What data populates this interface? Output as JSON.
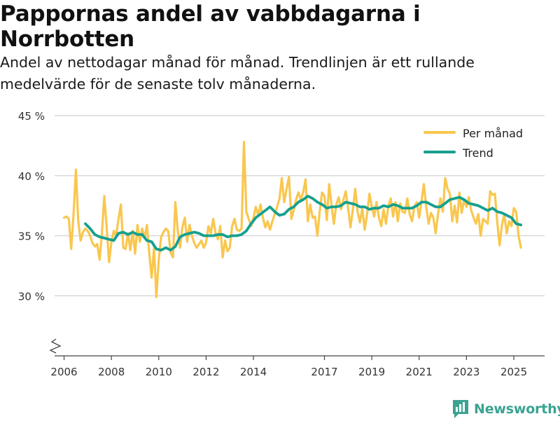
{
  "header": {
    "title": "Pappornas andel av vabbdagarna i Norrbotten",
    "subtitle": "Andel av nettodagar månad för månad. Trendlinjen är ett rullande medelvärde för de senaste tolv månaderna."
  },
  "brand": {
    "name": "Newsworthy",
    "color": "#3aa391"
  },
  "chart_data": {
    "type": "line",
    "title": "Pappornas andel av vabbdagarna i Norrbotten",
    "xlabel": "",
    "ylabel": "",
    "xlim": [
      2005.6,
      2026.3
    ],
    "ylim": [
      25,
      45
    ],
    "y_axis_break": true,
    "grid": true,
    "legend_position": "top-right",
    "y_ticks": [
      {
        "value": 30,
        "label": "30 %"
      },
      {
        "value": 35,
        "label": "35 %"
      },
      {
        "value": 40,
        "label": "40 %"
      },
      {
        "value": 45,
        "label": "45 %"
      }
    ],
    "x_ticks": [
      {
        "value": 2006,
        "label": "2006"
      },
      {
        "value": 2008,
        "label": "2008"
      },
      {
        "value": 2010,
        "label": "2010"
      },
      {
        "value": 2012,
        "label": "2012"
      },
      {
        "value": 2014,
        "label": "2014"
      },
      {
        "value": 2017,
        "label": "2017"
      },
      {
        "value": 2019,
        "label": "2019"
      },
      {
        "value": 2021,
        "label": "2021"
      },
      {
        "value": 2023,
        "label": "2023"
      },
      {
        "value": 2025,
        "label": "2025"
      }
    ],
    "series": [
      {
        "name": "Per månad",
        "color": "#f9c74f",
        "points": [
          [
            2006.0,
            36.5
          ],
          [
            2006.1,
            36.6
          ],
          [
            2006.2,
            36.4
          ],
          [
            2006.3,
            33.9
          ],
          [
            2006.4,
            36.8
          ],
          [
            2006.5,
            40.5
          ],
          [
            2006.6,
            36.2
          ],
          [
            2006.7,
            34.6
          ],
          [
            2006.8,
            35.3
          ],
          [
            2006.9,
            35.6
          ],
          [
            2007.0,
            35.4
          ],
          [
            2007.1,
            35.0
          ],
          [
            2007.2,
            34.4
          ],
          [
            2007.3,
            34.1
          ],
          [
            2007.4,
            34.3
          ],
          [
            2007.5,
            33.0
          ],
          [
            2007.6,
            35.2
          ],
          [
            2007.7,
            38.3
          ],
          [
            2007.8,
            35.7
          ],
          [
            2007.9,
            32.8
          ],
          [
            2008.0,
            34.5
          ],
          [
            2008.1,
            35.4
          ],
          [
            2008.2,
            35.0
          ],
          [
            2008.3,
            36.4
          ],
          [
            2008.4,
            37.6
          ],
          [
            2008.5,
            34.0
          ],
          [
            2008.6,
            33.9
          ],
          [
            2008.7,
            35.2
          ],
          [
            2008.8,
            33.8
          ],
          [
            2008.9,
            35.4
          ],
          [
            2009.0,
            33.5
          ],
          [
            2009.1,
            35.9
          ],
          [
            2009.2,
            34.5
          ],
          [
            2009.3,
            35.6
          ],
          [
            2009.4,
            34.8
          ],
          [
            2009.5,
            35.9
          ],
          [
            2009.6,
            33.5
          ],
          [
            2009.7,
            31.5
          ],
          [
            2009.8,
            34.0
          ],
          [
            2009.9,
            29.9
          ],
          [
            2010.0,
            33.0
          ],
          [
            2010.1,
            34.9
          ],
          [
            2010.2,
            35.3
          ],
          [
            2010.3,
            35.6
          ],
          [
            2010.4,
            35.4
          ],
          [
            2010.5,
            33.6
          ],
          [
            2010.6,
            33.2
          ],
          [
            2010.7,
            37.8
          ],
          [
            2010.8,
            35.5
          ],
          [
            2010.9,
            34.0
          ],
          [
            2011.0,
            35.7
          ],
          [
            2011.1,
            36.5
          ],
          [
            2011.2,
            34.5
          ],
          [
            2011.3,
            35.9
          ],
          [
            2011.4,
            35.0
          ],
          [
            2011.5,
            34.4
          ],
          [
            2011.6,
            34.0
          ],
          [
            2011.7,
            34.3
          ],
          [
            2011.8,
            34.6
          ],
          [
            2011.9,
            34.0
          ],
          [
            2012.0,
            34.4
          ],
          [
            2012.1,
            35.8
          ],
          [
            2012.2,
            35.2
          ],
          [
            2012.3,
            36.4
          ],
          [
            2012.4,
            35.2
          ],
          [
            2012.5,
            34.7
          ],
          [
            2012.6,
            35.8
          ],
          [
            2012.7,
            33.2
          ],
          [
            2012.8,
            34.6
          ],
          [
            2012.9,
            33.7
          ],
          [
            2013.0,
            34.0
          ],
          [
            2013.1,
            35.8
          ],
          [
            2013.2,
            36.4
          ],
          [
            2013.3,
            35.5
          ],
          [
            2013.4,
            35.4
          ],
          [
            2013.5,
            35.6
          ],
          [
            2013.6,
            42.8
          ],
          [
            2013.7,
            37.0
          ],
          [
            2013.8,
            36.4
          ],
          [
            2013.9,
            35.8
          ],
          [
            2014.0,
            36.5
          ],
          [
            2014.1,
            37.4
          ],
          [
            2014.2,
            36.7
          ],
          [
            2014.3,
            37.6
          ],
          [
            2014.4,
            36.5
          ],
          [
            2014.5,
            35.7
          ],
          [
            2014.6,
            36.2
          ],
          [
            2014.7,
            35.5
          ],
          [
            2014.8,
            36.2
          ],
          [
            2014.9,
            36.8
          ],
          [
            2015.0,
            37.4
          ],
          [
            2015.1,
            38.1
          ],
          [
            2015.2,
            39.8
          ],
          [
            2015.3,
            37.8
          ],
          [
            2015.4,
            38.9
          ],
          [
            2015.5,
            39.9
          ],
          [
            2015.6,
            36.4
          ],
          [
            2015.7,
            37.1
          ],
          [
            2015.8,
            38.0
          ],
          [
            2015.9,
            38.6
          ],
          [
            2016.0,
            38.0
          ],
          [
            2016.1,
            38.6
          ],
          [
            2016.2,
            39.7
          ],
          [
            2016.3,
            36.2
          ],
          [
            2016.4,
            37.6
          ],
          [
            2016.5,
            36.5
          ],
          [
            2016.6,
            36.6
          ],
          [
            2016.7,
            35.0
          ],
          [
            2016.8,
            37.0
          ],
          [
            2016.9,
            38.6
          ],
          [
            2017.0,
            38.3
          ],
          [
            2017.1,
            36.3
          ],
          [
            2017.2,
            39.3
          ],
          [
            2017.3,
            37.5
          ],
          [
            2017.4,
            36.0
          ],
          [
            2017.5,
            37.6
          ],
          [
            2017.6,
            38.2
          ],
          [
            2017.7,
            37.2
          ],
          [
            2017.8,
            38.0
          ],
          [
            2017.9,
            38.7
          ],
          [
            2018.0,
            37.3
          ],
          [
            2018.1,
            35.7
          ],
          [
            2018.2,
            37.2
          ],
          [
            2018.3,
            38.9
          ],
          [
            2018.4,
            37.0
          ],
          [
            2018.5,
            36.1
          ],
          [
            2018.6,
            37.3
          ],
          [
            2018.7,
            35.5
          ],
          [
            2018.8,
            36.8
          ],
          [
            2018.9,
            38.5
          ],
          [
            2019.0,
            37.4
          ],
          [
            2019.1,
            36.6
          ],
          [
            2019.2,
            37.8
          ],
          [
            2019.3,
            36.5
          ],
          [
            2019.4,
            35.8
          ],
          [
            2019.5,
            37.2
          ],
          [
            2019.6,
            36.0
          ],
          [
            2019.7,
            37.5
          ],
          [
            2019.8,
            38.1
          ],
          [
            2019.9,
            36.6
          ],
          [
            2020.0,
            37.8
          ],
          [
            2020.1,
            36.2
          ],
          [
            2020.2,
            37.7
          ],
          [
            2020.3,
            37.0
          ],
          [
            2020.4,
            36.9
          ],
          [
            2020.5,
            38.1
          ],
          [
            2020.6,
            36.8
          ],
          [
            2020.7,
            36.2
          ],
          [
            2020.8,
            37.4
          ],
          [
            2020.9,
            37.8
          ],
          [
            2021.0,
            36.5
          ],
          [
            2021.1,
            37.9
          ],
          [
            2021.2,
            39.3
          ],
          [
            2021.3,
            37.4
          ],
          [
            2021.4,
            36.0
          ],
          [
            2021.5,
            36.9
          ],
          [
            2021.6,
            36.5
          ],
          [
            2021.7,
            35.2
          ],
          [
            2021.8,
            36.8
          ],
          [
            2021.9,
            38.1
          ],
          [
            2022.0,
            37.0
          ],
          [
            2022.1,
            39.8
          ],
          [
            2022.2,
            38.9
          ],
          [
            2022.3,
            38.5
          ],
          [
            2022.4,
            36.2
          ],
          [
            2022.5,
            37.5
          ],
          [
            2022.6,
            36.1
          ],
          [
            2022.7,
            38.6
          ],
          [
            2022.8,
            36.9
          ],
          [
            2022.9,
            38.0
          ],
          [
            2023.0,
            37.4
          ],
          [
            2023.1,
            38.2
          ],
          [
            2023.2,
            37.1
          ],
          [
            2023.3,
            36.5
          ],
          [
            2023.4,
            36.0
          ],
          [
            2023.5,
            36.8
          ],
          [
            2023.6,
            35.0
          ],
          [
            2023.7,
            36.4
          ],
          [
            2023.8,
            36.2
          ],
          [
            2023.9,
            36.0
          ],
          [
            2024.0,
            38.7
          ],
          [
            2024.1,
            38.4
          ],
          [
            2024.2,
            38.5
          ],
          [
            2024.3,
            36.1
          ],
          [
            2024.4,
            34.2
          ],
          [
            2024.5,
            35.9
          ],
          [
            2024.6,
            36.8
          ],
          [
            2024.7,
            35.2
          ],
          [
            2024.8,
            36.2
          ],
          [
            2024.9,
            35.8
          ],
          [
            2025.0,
            37.3
          ],
          [
            2025.1,
            37.0
          ],
          [
            2025.2,
            35.0
          ],
          [
            2025.3,
            34.0
          ]
        ]
      },
      {
        "name": "Trend",
        "color": "#16a08e",
        "points": [
          [
            2006.9,
            36.0
          ],
          [
            2007.1,
            35.6
          ],
          [
            2007.3,
            35.1
          ],
          [
            2007.5,
            34.9
          ],
          [
            2007.7,
            34.8
          ],
          [
            2007.9,
            34.7
          ],
          [
            2008.1,
            34.6
          ],
          [
            2008.3,
            35.2
          ],
          [
            2008.5,
            35.3
          ],
          [
            2008.7,
            35.1
          ],
          [
            2008.9,
            35.3
          ],
          [
            2009.1,
            35.1
          ],
          [
            2009.3,
            35.1
          ],
          [
            2009.5,
            34.6
          ],
          [
            2009.7,
            34.5
          ],
          [
            2009.9,
            33.9
          ],
          [
            2010.1,
            33.8
          ],
          [
            2010.3,
            34.0
          ],
          [
            2010.5,
            33.8
          ],
          [
            2010.7,
            34.1
          ],
          [
            2010.9,
            34.9
          ],
          [
            2011.1,
            35.1
          ],
          [
            2011.3,
            35.2
          ],
          [
            2011.5,
            35.3
          ],
          [
            2011.7,
            35.2
          ],
          [
            2011.9,
            35.0
          ],
          [
            2012.1,
            35.0
          ],
          [
            2012.3,
            35.0
          ],
          [
            2012.5,
            35.1
          ],
          [
            2012.7,
            35.1
          ],
          [
            2012.9,
            34.9
          ],
          [
            2013.1,
            35.0
          ],
          [
            2013.3,
            35.0
          ],
          [
            2013.5,
            35.1
          ],
          [
            2013.7,
            35.4
          ],
          [
            2013.9,
            36.0
          ],
          [
            2014.1,
            36.5
          ],
          [
            2014.3,
            36.8
          ],
          [
            2014.5,
            37.1
          ],
          [
            2014.7,
            37.4
          ],
          [
            2014.9,
            37.0
          ],
          [
            2015.1,
            36.7
          ],
          [
            2015.3,
            36.8
          ],
          [
            2015.5,
            37.2
          ],
          [
            2015.7,
            37.4
          ],
          [
            2015.9,
            37.8
          ],
          [
            2016.1,
            38.0
          ],
          [
            2016.3,
            38.3
          ],
          [
            2016.5,
            38.1
          ],
          [
            2016.7,
            37.8
          ],
          [
            2016.9,
            37.6
          ],
          [
            2017.1,
            37.3
          ],
          [
            2017.3,
            37.4
          ],
          [
            2017.5,
            37.4
          ],
          [
            2017.7,
            37.5
          ],
          [
            2017.9,
            37.8
          ],
          [
            2018.1,
            37.7
          ],
          [
            2018.3,
            37.6
          ],
          [
            2018.5,
            37.4
          ],
          [
            2018.7,
            37.4
          ],
          [
            2018.9,
            37.2
          ],
          [
            2019.1,
            37.3
          ],
          [
            2019.3,
            37.3
          ],
          [
            2019.5,
            37.5
          ],
          [
            2019.7,
            37.4
          ],
          [
            2019.9,
            37.6
          ],
          [
            2020.1,
            37.5
          ],
          [
            2020.3,
            37.3
          ],
          [
            2020.5,
            37.3
          ],
          [
            2020.7,
            37.3
          ],
          [
            2020.9,
            37.5
          ],
          [
            2021.1,
            37.8
          ],
          [
            2021.3,
            37.8
          ],
          [
            2021.5,
            37.6
          ],
          [
            2021.7,
            37.4
          ],
          [
            2021.9,
            37.4
          ],
          [
            2022.1,
            37.7
          ],
          [
            2022.3,
            38.0
          ],
          [
            2022.5,
            38.1
          ],
          [
            2022.7,
            38.2
          ],
          [
            2022.9,
            38.0
          ],
          [
            2023.1,
            37.7
          ],
          [
            2023.3,
            37.6
          ],
          [
            2023.5,
            37.5
          ],
          [
            2023.7,
            37.3
          ],
          [
            2023.9,
            37.1
          ],
          [
            2024.1,
            37.3
          ],
          [
            2024.3,
            37.0
          ],
          [
            2024.5,
            36.9
          ],
          [
            2024.7,
            36.7
          ],
          [
            2024.9,
            36.5
          ],
          [
            2025.1,
            36.0
          ],
          [
            2025.3,
            35.9
          ]
        ]
      }
    ]
  }
}
